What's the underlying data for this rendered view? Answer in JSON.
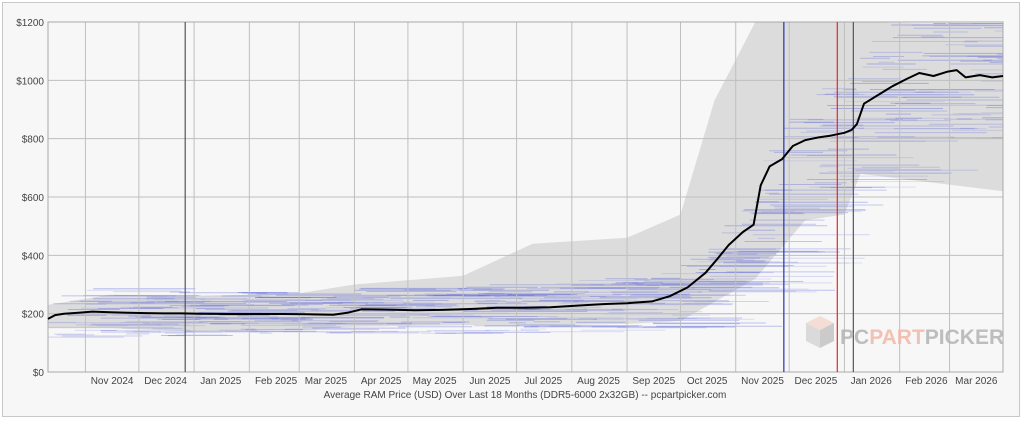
{
  "chart_data": {
    "type": "line",
    "xlabel": "Average RAM Price (USD) Over Last 18 Months (DDR5-6000 2x32GB) -- pcpartpicker.com",
    "ylabel": "",
    "ylim": [
      0,
      1200
    ],
    "y_ticks": [
      "$0",
      "$200",
      "$400",
      "$600",
      "$800",
      "$1000",
      "$1200"
    ],
    "x_ticks": [
      "Nov 2024",
      "Dec 2024",
      "Jan 2025",
      "Feb 2025",
      "Mar 2025",
      "Apr 2025",
      "May 2025",
      "Jun 2025",
      "Jul 2025",
      "Aug 2025",
      "Sep 2025",
      "Oct 2025",
      "Nov 2025",
      "Dec 2025",
      "Jan 2026",
      "Feb 2026",
      "Mar 2026"
    ],
    "x_range": [
      "2024-10-11",
      "2026-03-31"
    ],
    "grid": true,
    "series": [
      {
        "role": "average",
        "color": "#000000",
        "points": [
          [
            "2024-10-11",
            182
          ],
          [
            "2024-10-15",
            195
          ],
          [
            "2024-10-20",
            200
          ],
          [
            "2024-10-28",
            203
          ],
          [
            "2024-11-05",
            207
          ],
          [
            "2024-11-15",
            205
          ],
          [
            "2024-11-25",
            203
          ],
          [
            "2024-12-05",
            202
          ],
          [
            "2024-12-15",
            201
          ],
          [
            "2024-12-25",
            201
          ],
          [
            "2025-01-05",
            200
          ],
          [
            "2025-01-20",
            199
          ],
          [
            "2025-02-05",
            199
          ],
          [
            "2025-02-20",
            199
          ],
          [
            "2025-03-05",
            198
          ],
          [
            "2025-03-20",
            196
          ],
          [
            "2025-03-28",
            203
          ],
          [
            "2025-04-05",
            215
          ],
          [
            "2025-04-20",
            214
          ],
          [
            "2025-05-05",
            212
          ],
          [
            "2025-05-20",
            213
          ],
          [
            "2025-06-05",
            216
          ],
          [
            "2025-06-20",
            220
          ],
          [
            "2025-07-05",
            220
          ],
          [
            "2025-07-20",
            222
          ],
          [
            "2025-08-05",
            228
          ],
          [
            "2025-08-20",
            233
          ],
          [
            "2025-09-01",
            236
          ],
          [
            "2025-09-15",
            242
          ],
          [
            "2025-09-25",
            260
          ],
          [
            "2025-10-05",
            290
          ],
          [
            "2025-10-15",
            340
          ],
          [
            "2025-10-22",
            390
          ],
          [
            "2025-10-28",
            435
          ],
          [
            "2025-11-05",
            480
          ],
          [
            "2025-11-11",
            505
          ],
          [
            "2025-11-15",
            640
          ],
          [
            "2025-11-20",
            705
          ],
          [
            "2025-11-27",
            730
          ],
          [
            "2025-12-03",
            775
          ],
          [
            "2025-12-10",
            795
          ],
          [
            "2025-12-18",
            805
          ],
          [
            "2025-12-24",
            810
          ],
          [
            "2026-01-01",
            820
          ],
          [
            "2026-01-05",
            830
          ],
          [
            "2026-01-08",
            850
          ],
          [
            "2026-01-12",
            920
          ],
          [
            "2026-01-20",
            950
          ],
          [
            "2026-01-28",
            980
          ],
          [
            "2026-02-05",
            1005
          ],
          [
            "2026-02-12",
            1025
          ],
          [
            "2026-02-20",
            1015
          ],
          [
            "2026-02-28",
            1030
          ],
          [
            "2026-03-05",
            1035
          ],
          [
            "2026-03-10",
            1010
          ],
          [
            "2026-03-18",
            1018
          ],
          [
            "2026-03-25",
            1010
          ],
          [
            "2026-03-31",
            1015
          ]
        ]
      }
    ],
    "range_band": {
      "color": "#dcdcdc",
      "points": [
        [
          "2024-10-11",
          150,
          230
        ],
        [
          "2024-11-15",
          150,
          265
        ],
        [
          "2025-01-01",
          140,
          260
        ],
        [
          "2025-03-01",
          145,
          270
        ],
        [
          "2025-04-01",
          155,
          300
        ],
        [
          "2025-06-01",
          160,
          330
        ],
        [
          "2025-07-10",
          160,
          440
        ],
        [
          "2025-09-01",
          165,
          460
        ],
        [
          "2025-10-01",
          175,
          540
        ],
        [
          "2025-10-20",
          240,
          930
        ],
        [
          "2025-11-12",
          320,
          1200
        ],
        [
          "2025-12-10",
          520,
          1200
        ],
        [
          "2026-01-01",
          540,
          1200
        ],
        [
          "2026-01-10",
          680,
          1200
        ],
        [
          "2026-03-31",
          620,
          1190
        ]
      ]
    },
    "vertical_markers": [
      {
        "date": "2024-12-27",
        "color": "#555555"
      },
      {
        "date": "2025-11-28",
        "color": "#2233aa"
      },
      {
        "date": "2025-12-28",
        "color": "#ee2222"
      },
      {
        "date": "2026-01-06",
        "color": "#555555"
      }
    ]
  },
  "watermark": {
    "pc": "PC",
    "part": "PART",
    "picker": "PICKER"
  },
  "colors": {
    "average_line": "#000000",
    "offers": "#4a55d8",
    "band": "#dcdcdc",
    "grid": "#bfbfbf",
    "logo_pc": "#b4b4b4",
    "logo_part": "#f0b9a8"
  }
}
